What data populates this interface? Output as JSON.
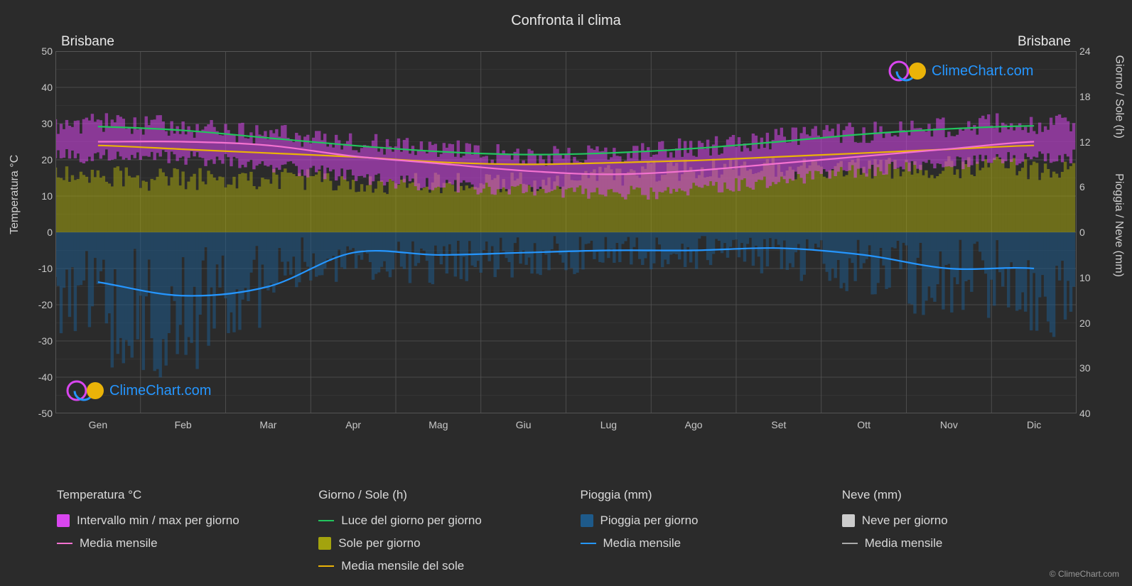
{
  "title": "Confronta il clima",
  "location_left": "Brisbane",
  "location_right": "Brisbane",
  "brand": "ClimeChart.com",
  "copyright": "© ClimeChart.com",
  "axis_left": {
    "label": "Temperatura °C",
    "min": -50,
    "max": 50,
    "step": 10
  },
  "axis_right_top": {
    "label": "Giorno / Sole (h)",
    "min": 0,
    "max": 24,
    "step": 6
  },
  "axis_right_bot": {
    "label": "Pioggia / Neve (mm)",
    "min": 0,
    "max": 40,
    "step": 10
  },
  "months": [
    "Gen",
    "Feb",
    "Mar",
    "Apr",
    "Mag",
    "Giu",
    "Lug",
    "Ago",
    "Set",
    "Ott",
    "Nov",
    "Dic"
  ],
  "colors": {
    "bg": "#2b2b2b",
    "grid": "#555555",
    "grid_minor": "#3f3f3f",
    "temp_range": "#d946ef",
    "temp_mean": "#f472d0",
    "daylight": "#22c55e",
    "sun_fill": "#a3a30e",
    "sun_mean": "#eab308",
    "rain_fill": "#1e5a8a",
    "rain_mean": "#2596ff",
    "snow_fill": "#cccccc",
    "snow_mean": "#aaaaaa",
    "brand_blue": "#2596ff",
    "brand_magenta": "#d946ef",
    "brand_yellow": "#eab308"
  },
  "legend": {
    "temp": {
      "head": "Temperatura °C",
      "range": "Intervallo min / max per giorno",
      "mean": "Media mensile"
    },
    "daysun": {
      "head": "Giorno / Sole (h)",
      "daylight": "Luce del giorno per giorno",
      "sun": "Sole per giorno",
      "sun_mean": "Media mensile del sole"
    },
    "rain": {
      "head": "Pioggia (mm)",
      "daily": "Pioggia per giorno",
      "mean": "Media mensile"
    },
    "snow": {
      "head": "Neve (mm)",
      "daily": "Neve per giorno",
      "mean": "Media mensile"
    }
  },
  "series": {
    "temp_min": [
      21,
      21,
      20,
      17,
      14,
      12,
      11,
      11,
      13,
      16,
      18,
      20
    ],
    "temp_max": [
      30,
      30,
      28,
      26,
      24,
      22,
      21,
      22,
      25,
      27,
      28,
      30
    ],
    "temp_mean": [
      25,
      25,
      24,
      21,
      19,
      17,
      16,
      17,
      19,
      21,
      23,
      25
    ],
    "daylight_h": [
      14,
      13.5,
      12.5,
      11.5,
      10.7,
      10.3,
      10.5,
      11.1,
      12,
      13,
      13.7,
      14.1
    ],
    "sun_h": [
      8,
      7,
      7,
      7,
      6.5,
      6.3,
      7,
      8,
      8.5,
      8.5,
      8.5,
      8.7
    ],
    "sun_mean_h": [
      11.5,
      11,
      10.5,
      10,
      9.3,
      9,
      9.2,
      9.5,
      10,
      10.5,
      11,
      11.5
    ],
    "rain_mm": [
      11,
      14,
      12,
      4.5,
      5,
      4.5,
      4,
      4,
      3.5,
      5,
      8,
      8
    ]
  },
  "chart": {
    "temp_band_opacity": 0.55,
    "sun_band_opacity": 0.55,
    "rain_band_opacity": 0.55,
    "line_width": 2.2
  }
}
